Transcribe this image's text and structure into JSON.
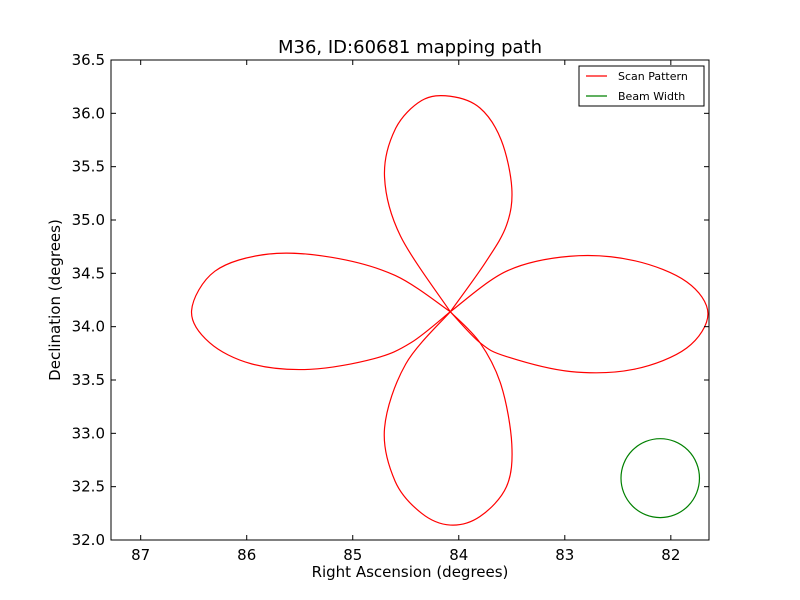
{
  "chart_data": {
    "type": "line",
    "title": "M36, ID:60681 mapping path",
    "xlabel": "Right Ascension (degrees)",
    "ylabel": "Declination (degrees)",
    "xlim": [
      87.28,
      81.64
    ],
    "ylim": [
      32.0,
      36.5
    ],
    "x_inverted": true,
    "xticks": [
      87,
      86,
      85,
      84,
      83,
      82
    ],
    "xtick_labels": [
      "87",
      "86",
      "85",
      "84",
      "83",
      "82"
    ],
    "yticks": [
      32.0,
      32.5,
      33.0,
      33.5,
      34.0,
      34.5,
      35.0,
      35.5,
      36.0,
      36.5
    ],
    "ytick_labels": [
      "32.0",
      "32.5",
      "33.0",
      "33.5",
      "34.0",
      "34.5",
      "35.0",
      "35.5",
      "36.0",
      "36.5"
    ],
    "grid": false,
    "legend_position": "top-right",
    "series": [
      {
        "name": "Scan Pattern",
        "color": "#ff0000",
        "center": [
          84.08,
          34.14
        ],
        "petals": [
          {
            "direction": "north",
            "points": [
              [
                84.08,
                34.14
              ],
              [
                84.55,
                34.85
              ],
              [
                84.7,
                35.4
              ],
              [
                84.6,
                35.85
              ],
              [
                84.35,
                36.12
              ],
              [
                84.08,
                36.16
              ],
              [
                83.8,
                36.05
              ],
              [
                83.6,
                35.75
              ],
              [
                83.5,
                35.3
              ],
              [
                83.55,
                34.95
              ],
              [
                83.75,
                34.6
              ],
              [
                84.08,
                34.14
              ]
            ]
          },
          {
            "direction": "east",
            "points": [
              [
                84.08,
                34.14
              ],
              [
                84.6,
                34.48
              ],
              [
                85.2,
                34.65
              ],
              [
                85.8,
                34.68
              ],
              [
                86.3,
                34.52
              ],
              [
                86.52,
                34.15
              ],
              [
                86.35,
                33.85
              ],
              [
                85.95,
                33.65
              ],
              [
                85.4,
                33.6
              ],
              [
                84.8,
                33.7
              ],
              [
                84.45,
                33.85
              ],
              [
                84.08,
                34.14
              ]
            ]
          },
          {
            "direction": "south",
            "points": [
              [
                84.08,
                34.14
              ],
              [
                84.5,
                33.65
              ],
              [
                84.7,
                33.05
              ],
              [
                84.6,
                32.55
              ],
              [
                84.35,
                32.25
              ],
              [
                84.08,
                32.14
              ],
              [
                83.8,
                32.22
              ],
              [
                83.55,
                32.5
              ],
              [
                83.5,
                32.9
              ],
              [
                83.6,
                33.45
              ],
              [
                83.8,
                33.85
              ],
              [
                84.08,
                34.14
              ]
            ]
          },
          {
            "direction": "west",
            "points": [
              [
                84.08,
                34.14
              ],
              [
                83.55,
                34.52
              ],
              [
                82.95,
                34.66
              ],
              [
                82.35,
                34.62
              ],
              [
                81.85,
                34.42
              ],
              [
                81.65,
                34.12
              ],
              [
                81.85,
                33.8
              ],
              [
                82.35,
                33.6
              ],
              [
                82.95,
                33.58
              ],
              [
                83.55,
                33.72
              ],
              [
                83.8,
                33.85
              ],
              [
                84.08,
                34.14
              ]
            ]
          }
        ]
      },
      {
        "name": "Beam Width",
        "color": "#008000",
        "shape": "circle",
        "center": [
          82.1,
          32.58
        ],
        "radius_deg": 0.37
      }
    ]
  }
}
